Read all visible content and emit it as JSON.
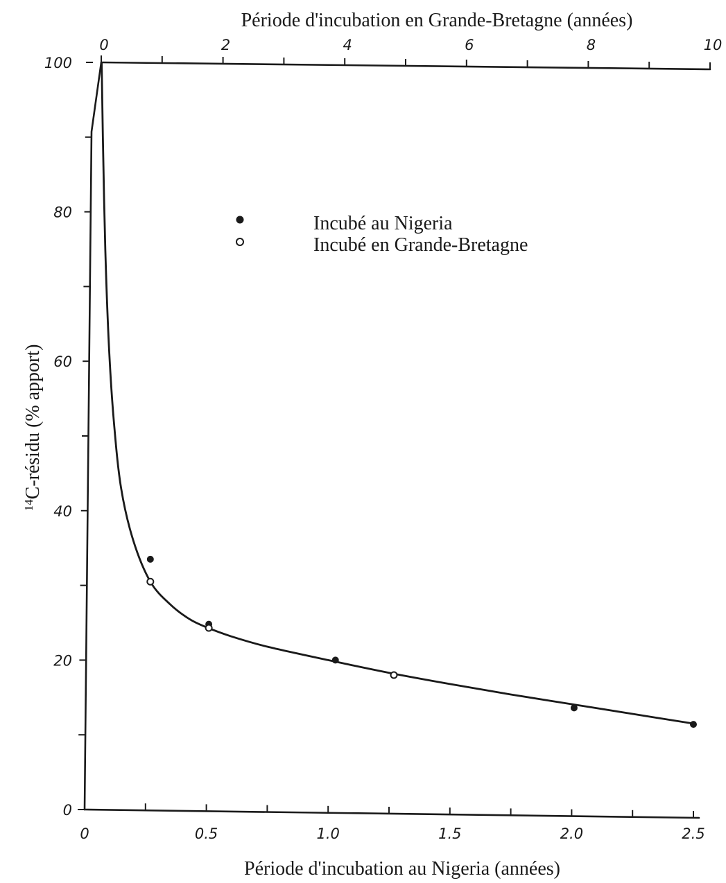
{
  "chart_data": {
    "type": "scatter",
    "title": "",
    "xlabel": "Période d'incubation au Nigeria (années)",
    "x2label": "Période d'incubation en Grande-Bretagne (années)",
    "ylabel": "14C-résidu (% apport)",
    "ylabel_superscript": "14",
    "ylabel_rest": "C-résidu (% apport)",
    "xlim": [
      0,
      2.5
    ],
    "x2lim": [
      0,
      10
    ],
    "ylim": [
      0,
      100
    ],
    "x_ticks": [
      "0",
      "0.5",
      "1.0",
      "1.5",
      "2.0",
      "2.5"
    ],
    "x_tick_values": [
      0,
      0.5,
      1.0,
      1.5,
      2.0,
      2.5
    ],
    "x2_ticks": [
      "0",
      "2",
      "4",
      "6",
      "8",
      "10"
    ],
    "x2_tick_values": [
      0,
      2,
      4,
      6,
      8,
      10
    ],
    "y_ticks": [
      "0",
      "20",
      "40",
      "60",
      "80",
      "100"
    ],
    "y_tick_values": [
      0,
      20,
      40,
      60,
      80,
      100
    ],
    "legend_position": "upper-center",
    "series": [
      {
        "name": "Incubé au Nigeria",
        "marker": "filled-circle",
        "x": [
          0.27,
          0.51,
          1.03,
          2.01,
          2.5
        ],
        "y": [
          33.5,
          24.8,
          20.0,
          13.6,
          11.4
        ]
      },
      {
        "name": "Incubé en Grande-Bretagne",
        "marker": "open-circle",
        "x": [
          0.27,
          0.51,
          1.27
        ],
        "y": [
          30.5,
          24.3,
          18.0
        ]
      }
    ],
    "fit_curve": {
      "x": [
        0.07,
        0.075,
        0.085,
        0.1,
        0.12,
        0.15,
        0.2,
        0.27,
        0.35,
        0.43,
        0.5,
        0.6,
        0.75,
        1.0,
        1.25,
        1.5,
        1.75,
        2.0,
        2.25,
        2.5
      ],
      "y": [
        100,
        90,
        75,
        62,
        52,
        43,
        36,
        30.5,
        27.5,
        25.5,
        24.4,
        23.2,
        21.8,
        20.0,
        18.3,
        16.8,
        15.4,
        14.1,
        12.8,
        11.5
      ]
    }
  }
}
